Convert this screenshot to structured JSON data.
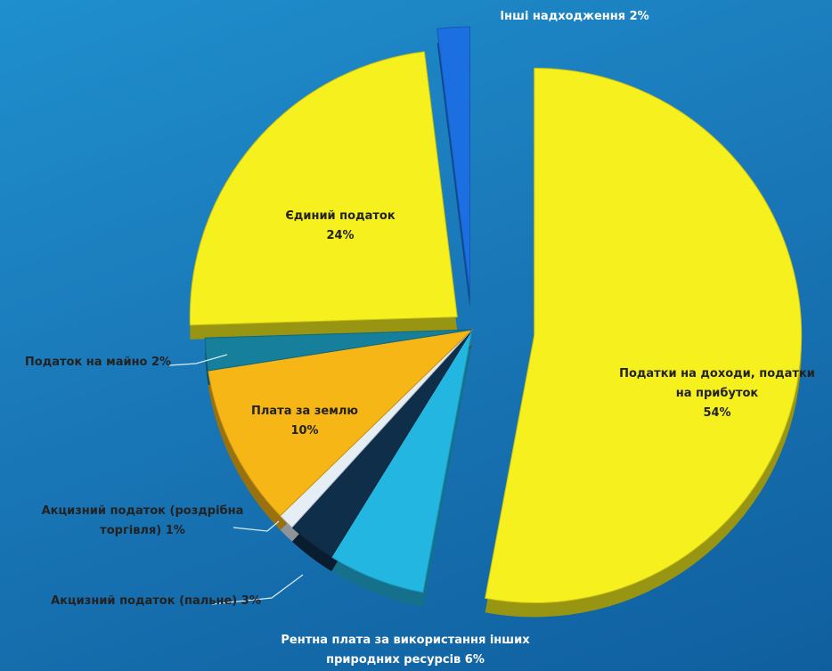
{
  "chart_data": {
    "type": "pie",
    "title": "",
    "exploded": true,
    "slices": [
      {
        "name": "Податки на доходи, податки на прибуток",
        "value": 54,
        "label_lines": [
          "Податки на доходи, податки",
          "на прибуток",
          "54%"
        ],
        "color": "#f5f01e"
      },
      {
        "name": "Рентна плата за використання інших природних ресурсів",
        "value": 6,
        "label_lines": [
          "Рентна плата за використання інших",
          "природних ресурсів 6%"
        ],
        "color": "#22b6e0"
      },
      {
        "name": "Акцизний податок (пальне)",
        "value": 3,
        "label_lines": [
          "Акцизний податок (пальне) 3%"
        ],
        "color": "#0f2e4a"
      },
      {
        "name": "Акцизний податок (роздрібна торгівля)",
        "value": 1,
        "label_lines": [
          "Акцизний податок (роздрібна",
          "торгівля) 1%"
        ],
        "color": "#e6eef5"
      },
      {
        "name": "Плата за землю",
        "value": 10,
        "label_lines": [
          "Плата за землю",
          "10%"
        ],
        "color": "#f6b716"
      },
      {
        "name": "Податок на майно",
        "value": 2,
        "label_lines": [
          "Податок на майно 2%"
        ],
        "color": "#157f9c"
      },
      {
        "name": "Єдиний податок",
        "value": 24,
        "label_lines": [
          "Єдиний податок",
          "24%"
        ],
        "color": "#f5f01e"
      },
      {
        "name": "Інші надходження",
        "value": 2,
        "label_lines": [
          "Інші надходження 2%"
        ],
        "color": "#1c6fe0"
      }
    ]
  }
}
